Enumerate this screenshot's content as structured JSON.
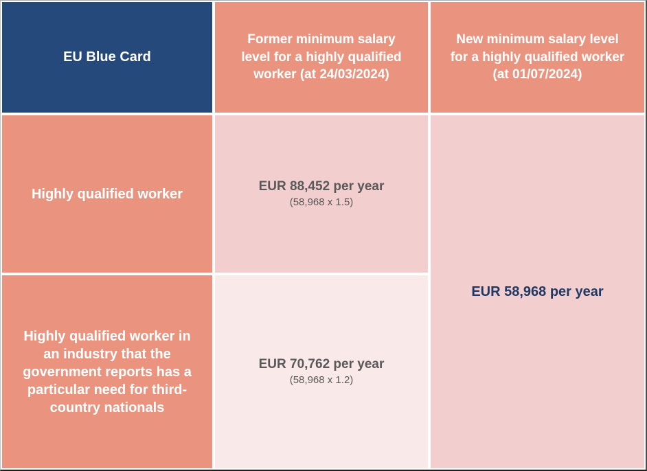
{
  "table": {
    "header": {
      "col1": "EU Blue Card",
      "col2": "Former minimum salary\nlevel for a highly qualified\nworker (at 24/03/2024)",
      "col3": "New minimum salary level\nfor a highly qualified worker\n(at 01/07/2024)"
    },
    "rows": [
      {
        "label": "Highly qualified worker",
        "former_value": "EUR 88,452 per year",
        "former_formula": "(58,968 x 1.5)"
      },
      {
        "label": "Highly qualified worker in\nan industry that the\ngovernment reports has a\nparticular need for third-\ncountry nationals",
        "former_value": "EUR 70,762 per year",
        "former_formula": "(58,968 x 1.2)"
      }
    ],
    "new_value": "EUR 58,968 per year"
  },
  "chart_data": {
    "type": "table",
    "columns": [
      "EU Blue Card",
      "Former minimum salary level for a highly qualified worker (at 24/03/2024)",
      "New minimum salary level for a highly qualified worker (at 01/07/2024)"
    ],
    "rows": [
      [
        "Highly qualified worker",
        "EUR 88,452 per year (58,968 x 1.5)",
        "EUR 58,968 per year"
      ],
      [
        "Highly qualified worker in an industry that the government reports has a particular need for third-country nationals",
        "EUR 70,762 per year (58,968 x 1.2)",
        "EUR 58,968 per year"
      ]
    ]
  },
  "colors": {
    "header_blue": "#25497b",
    "salmon": "#ea947f",
    "light_pink": "#f2cfce",
    "lighter_pink": "#f9e9e8",
    "gridline": "#ffffff",
    "header_text": "#ffffff",
    "value_gray": "#595959",
    "value_navy": "#1f3864"
  }
}
